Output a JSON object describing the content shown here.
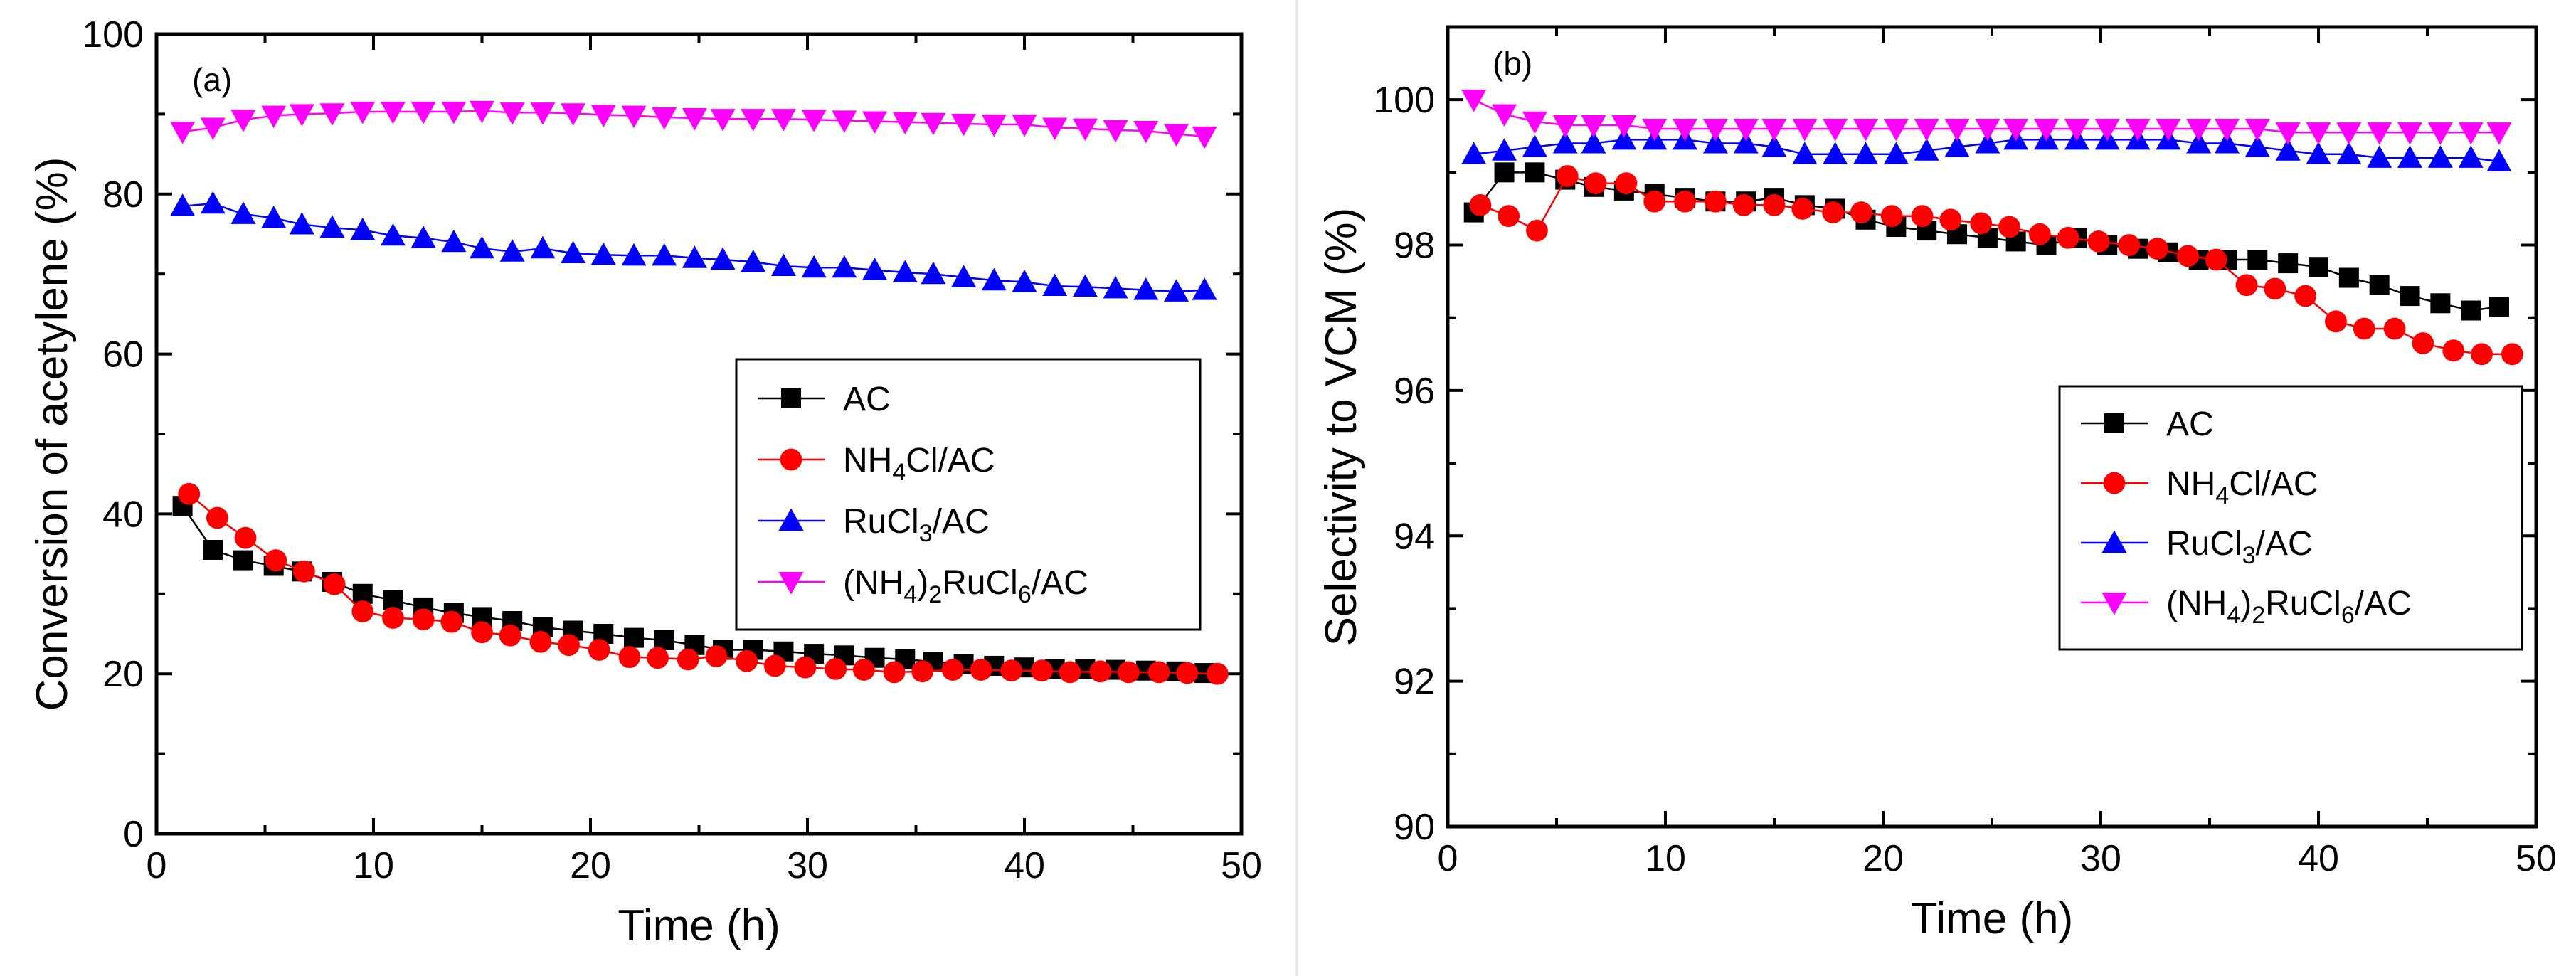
{
  "chart_data": [
    {
      "type": "line",
      "panel_label": "(a)",
      "xlabel": "Time (h)",
      "ylabel": "Conversion of acetylene (%)",
      "xlim": [
        0,
        50
      ],
      "ylim": [
        0,
        100
      ],
      "xticks": [
        "0",
        "10",
        "20",
        "30",
        "40",
        "50"
      ],
      "yticks": [
        "0",
        "20",
        "40",
        "60",
        "80",
        "100"
      ],
      "legend_position": "middle-right",
      "series": [
        {
          "name": "AC",
          "color": "#000000",
          "marker": "square",
          "x": [
            1.2,
            2.6,
            4.0,
            5.4,
            6.7,
            8.1,
            9.5,
            10.9,
            12.3,
            13.7,
            15.0,
            16.4,
            17.8,
            19.2,
            20.6,
            22.0,
            23.4,
            24.8,
            26.1,
            27.5,
            28.9,
            30.3,
            31.7,
            33.1,
            34.5,
            35.8,
            37.2,
            38.6,
            40.0,
            41.4,
            42.8,
            44.2,
            45.6,
            47.0,
            48.3
          ],
          "y": [
            41.0,
            35.5,
            34.2,
            33.5,
            32.8,
            31.5,
            30.0,
            29.2,
            28.3,
            27.6,
            27.1,
            26.6,
            25.8,
            25.4,
            25.0,
            24.5,
            24.2,
            23.6,
            23.0,
            23.0,
            22.8,
            22.5,
            22.3,
            22.0,
            21.8,
            21.5,
            21.2,
            21.0,
            20.8,
            20.6,
            20.6,
            20.5,
            20.4,
            20.3,
            20.1
          ]
        },
        {
          "name": "NH4Cl/AC",
          "color": "#ff0000",
          "marker": "circle",
          "x": [
            1.5,
            2.8,
            4.1,
            5.5,
            6.8,
            8.2,
            9.5,
            10.9,
            12.3,
            13.6,
            15.0,
            16.3,
            17.7,
            19.0,
            20.4,
            21.8,
            23.1,
            24.5,
            25.8,
            27.2,
            28.5,
            29.9,
            31.3,
            32.6,
            34.0,
            35.3,
            36.7,
            38.0,
            39.4,
            40.8,
            42.1,
            43.5,
            44.8,
            46.2,
            47.5,
            48.9
          ],
          "y": [
            42.5,
            39.5,
            37.0,
            34.2,
            32.8,
            31.2,
            27.8,
            27.0,
            26.8,
            26.5,
            25.2,
            24.8,
            24.0,
            23.6,
            23.0,
            22.1,
            22.0,
            21.8,
            22.2,
            21.6,
            21.0,
            20.8,
            20.6,
            20.5,
            20.2,
            20.3,
            20.5,
            20.5,
            20.4,
            20.4,
            20.2,
            20.3,
            20.2,
            20.2,
            20.1,
            20.0
          ]
        },
        {
          "name": "RuCl3/AC",
          "color": "#0000ff",
          "marker": "triangle-up",
          "x": [
            1.2,
            2.6,
            4.0,
            5.4,
            6.7,
            8.1,
            9.5,
            10.9,
            12.3,
            13.7,
            15.0,
            16.4,
            17.8,
            19.2,
            20.6,
            22.0,
            23.4,
            24.8,
            26.1,
            27.5,
            28.9,
            30.3,
            31.7,
            33.1,
            34.5,
            35.8,
            37.2,
            38.6,
            40.0,
            41.4,
            42.8,
            44.2,
            45.6,
            47.0,
            48.3
          ],
          "y": [
            78.5,
            78.8,
            77.5,
            77.0,
            76.2,
            75.8,
            75.5,
            74.8,
            74.5,
            74.0,
            73.2,
            72.8,
            73.2,
            72.6,
            72.4,
            72.3,
            72.3,
            72.0,
            71.8,
            71.5,
            71.0,
            70.8,
            70.8,
            70.5,
            70.2,
            70.0,
            69.6,
            69.2,
            69.0,
            68.5,
            68.4,
            68.2,
            68.0,
            67.8,
            68.0
          ]
        },
        {
          "name": "(NH4)2RuCl6/AC",
          "color": "#ff00ff",
          "marker": "triangle-down",
          "x": [
            1.2,
            2.6,
            4.0,
            5.4,
            6.7,
            8.1,
            9.5,
            10.9,
            12.3,
            13.7,
            15.0,
            16.4,
            17.8,
            19.2,
            20.6,
            22.0,
            23.4,
            24.8,
            26.1,
            27.5,
            28.9,
            30.3,
            31.7,
            33.1,
            34.5,
            35.8,
            37.2,
            38.6,
            40.0,
            41.4,
            42.8,
            44.2,
            45.6,
            47.0,
            48.3
          ],
          "y": [
            87.8,
            88.3,
            89.3,
            89.8,
            90.0,
            90.1,
            90.3,
            90.3,
            90.3,
            90.3,
            90.4,
            90.2,
            90.2,
            90.1,
            89.9,
            89.8,
            89.6,
            89.5,
            89.4,
            89.4,
            89.4,
            89.3,
            89.2,
            89.1,
            89.0,
            88.9,
            88.8,
            88.7,
            88.7,
            88.3,
            88.2,
            88.0,
            87.9,
            87.5,
            87.2
          ]
        }
      ]
    },
    {
      "type": "line",
      "panel_label": "(b)",
      "xlabel": "Time (h)",
      "ylabel": "Selectivity to VCM (%)",
      "xlim": [
        0,
        50
      ],
      "ylim": [
        90,
        101
      ],
      "xticks": [
        "0",
        "10",
        "20",
        "30",
        "40",
        "50"
      ],
      "yticks": [
        "90",
        "92",
        "94",
        "96",
        "98",
        "100"
      ],
      "legend_position": "lower-right",
      "series": [
        {
          "name": "AC",
          "color": "#000000",
          "marker": "square",
          "x": [
            1.2,
            2.6,
            4.0,
            5.4,
            6.7,
            8.1,
            9.5,
            10.9,
            12.3,
            13.7,
            15.0,
            16.4,
            17.8,
            19.2,
            20.6,
            22.0,
            23.4,
            24.8,
            26.1,
            27.5,
            28.9,
            30.3,
            31.7,
            33.1,
            34.5,
            35.8,
            37.2,
            38.6,
            40.0,
            41.4,
            42.8,
            44.2,
            45.6,
            47.0,
            48.3
          ],
          "y": [
            98.45,
            99.0,
            99.0,
            98.9,
            98.8,
            98.75,
            98.7,
            98.65,
            98.6,
            98.6,
            98.65,
            98.55,
            98.5,
            98.35,
            98.25,
            98.2,
            98.15,
            98.1,
            98.05,
            98.0,
            98.1,
            98.0,
            97.95,
            97.9,
            97.8,
            97.8,
            97.8,
            97.75,
            97.7,
            97.55,
            97.45,
            97.3,
            97.2,
            97.1,
            97.15
          ]
        },
        {
          "name": "NH4Cl/AC",
          "color": "#ff0000",
          "marker": "circle",
          "x": [
            1.5,
            2.8,
            4.1,
            5.5,
            6.8,
            8.2,
            9.5,
            10.9,
            12.3,
            13.6,
            15.0,
            16.3,
            17.7,
            19.0,
            20.4,
            21.8,
            23.1,
            24.5,
            25.8,
            27.2,
            28.5,
            29.9,
            31.3,
            32.6,
            34.0,
            35.3,
            36.7,
            38.0,
            39.4,
            40.8,
            42.1,
            43.5,
            44.8,
            46.2,
            47.5,
            48.9
          ],
          "y": [
            98.55,
            98.4,
            98.2,
            98.95,
            98.85,
            98.85,
            98.6,
            98.6,
            98.6,
            98.55,
            98.55,
            98.5,
            98.45,
            98.45,
            98.4,
            98.4,
            98.35,
            98.3,
            98.25,
            98.15,
            98.1,
            98.05,
            98.0,
            97.95,
            97.85,
            97.8,
            97.45,
            97.4,
            97.3,
            96.95,
            96.85,
            96.85,
            96.65,
            96.55,
            96.5,
            96.5
          ]
        },
        {
          "name": "RuCl3/AC",
          "color": "#0000ff",
          "marker": "triangle-up",
          "x": [
            1.2,
            2.6,
            4.0,
            5.4,
            6.7,
            8.1,
            9.5,
            10.9,
            12.3,
            13.7,
            15.0,
            16.4,
            17.8,
            19.2,
            20.6,
            22.0,
            23.4,
            24.8,
            26.1,
            27.5,
            28.9,
            30.3,
            31.7,
            33.1,
            34.5,
            35.8,
            37.2,
            38.6,
            40.0,
            41.4,
            42.8,
            44.2,
            45.6,
            47.0,
            48.3
          ],
          "y": [
            99.25,
            99.3,
            99.35,
            99.4,
            99.4,
            99.45,
            99.45,
            99.45,
            99.4,
            99.4,
            99.35,
            99.25,
            99.25,
            99.25,
            99.25,
            99.3,
            99.35,
            99.4,
            99.45,
            99.45,
            99.45,
            99.45,
            99.45,
            99.45,
            99.4,
            99.4,
            99.35,
            99.3,
            99.25,
            99.25,
            99.2,
            99.2,
            99.2,
            99.2,
            99.15
          ]
        },
        {
          "name": "(NH4)2RuCl6/AC",
          "color": "#ff00ff",
          "marker": "triangle-down",
          "x": [
            1.2,
            2.6,
            4.0,
            5.4,
            6.7,
            8.1,
            9.5,
            10.9,
            12.3,
            13.7,
            15.0,
            16.4,
            17.8,
            19.2,
            20.6,
            22.0,
            23.4,
            24.8,
            26.1,
            27.5,
            28.9,
            30.3,
            31.7,
            33.1,
            34.5,
            35.8,
            37.2,
            38.6,
            40.0,
            41.4,
            42.8,
            44.2,
            45.6,
            47.0,
            48.3
          ],
          "y": [
            100.0,
            99.8,
            99.7,
            99.65,
            99.65,
            99.65,
            99.6,
            99.6,
            99.6,
            99.6,
            99.6,
            99.6,
            99.6,
            99.6,
            99.6,
            99.6,
            99.6,
            99.6,
            99.6,
            99.6,
            99.6,
            99.6,
            99.6,
            99.6,
            99.6,
            99.6,
            99.6,
            99.55,
            99.55,
            99.55,
            99.55,
            99.55,
            99.55,
            99.55,
            99.55
          ]
        }
      ]
    }
  ]
}
